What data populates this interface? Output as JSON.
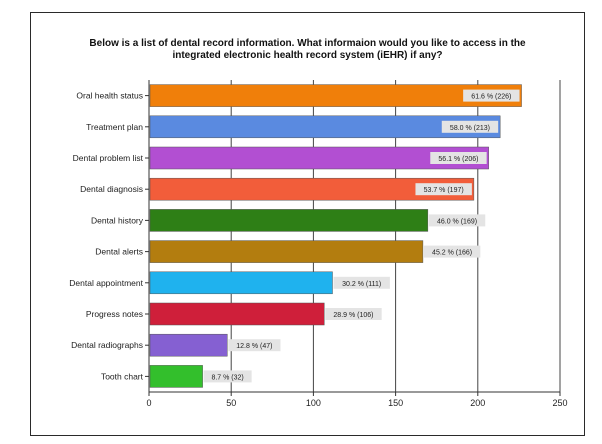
{
  "chart_data": {
    "type": "bar",
    "orientation": "horizontal",
    "title_lines": [
      "Below is a list of dental record information. What informaion would you like to access in the",
      "integrated electronic health record system (iEHR) if any?"
    ],
    "xlabel": "",
    "ylabel": "",
    "xlim": [
      0,
      250
    ],
    "xticks": [
      0,
      50,
      100,
      150,
      200,
      250
    ],
    "grid": "vertical",
    "categories": [
      "Oral health status",
      "Treatment plan",
      "Dental problem list",
      "Dental diagnosis",
      "Dental history",
      "Dental alerts",
      "Dental appointment",
      "Progress notes",
      "Dental radiographs",
      "Tooth chart"
    ],
    "values": [
      226,
      213,
      206,
      197,
      169,
      166,
      111,
      106,
      47,
      32
    ],
    "data_labels": [
      "61.6 % (226)",
      "58.0 % (213)",
      "56.1 % (206)",
      "53.7 % (197)",
      "46.0 % (169)",
      "45.2 % (166)",
      "30.2 % (111)",
      "28.9 % (106)",
      "12.8 % (47)",
      "8.7 % (32)"
    ],
    "colors": [
      "#F07F0A",
      "#5A8AE0",
      "#B24FD2",
      "#F25D3A",
      "#2E7F16",
      "#B37D0F",
      "#1FB2EE",
      "#CF1F3A",
      "#8560D2",
      "#33BF2C"
    ]
  }
}
